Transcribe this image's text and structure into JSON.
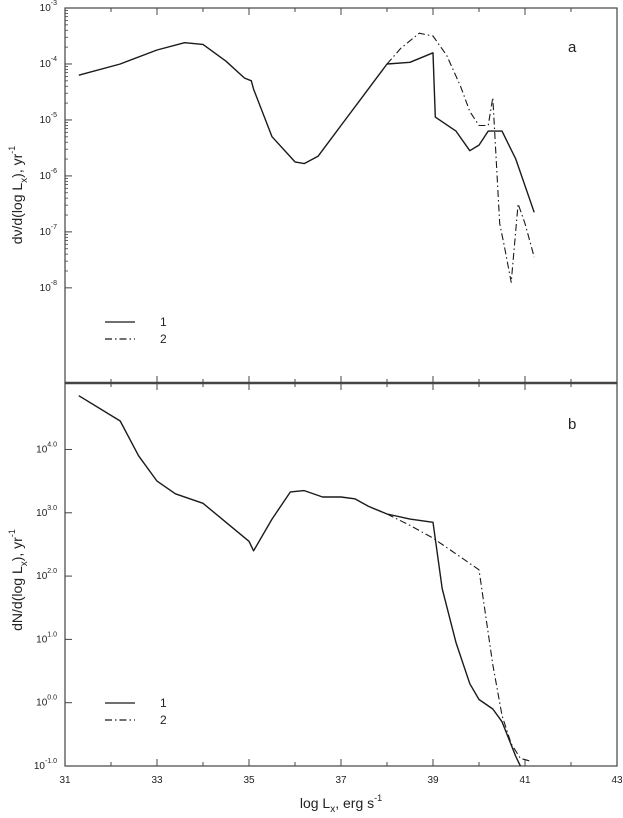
{
  "chart_data": [
    {
      "type": "line",
      "panel_label": "a",
      "ylabel": "dν/d(log L x), yr-1",
      "ylabel_parts": {
        "main": "dν/d(log L",
        "sub": "x",
        "close": "), yr",
        "sup": "-1"
      },
      "x_ticks": [],
      "y_ticks": [
        {
          "base": "10",
          "exp": "-3",
          "value": 0.001
        },
        {
          "base": "10",
          "exp": "-4",
          "value": 0.0001
        },
        {
          "base": "10",
          "exp": "-5",
          "value": 1e-05
        },
        {
          "base": "10",
          "exp": "-6",
          "value": 1e-06
        },
        {
          "base": "10",
          "exp": "-7",
          "value": 1e-07
        },
        {
          "base": "10",
          "exp": "-8",
          "value": 1e-08
        }
      ],
      "xlim": [
        31,
        43
      ],
      "ylim_log10": [
        -9.7,
        -3
      ],
      "y_scale": "log",
      "legend": [
        {
          "label": "1",
          "style": "solid"
        },
        {
          "label": "2",
          "style": "dashdot"
        }
      ],
      "legend_placement": "lower-left",
      "series": [
        {
          "label_ref": "1",
          "style": "solid",
          "x": [
            31.3,
            32.2,
            33.0,
            33.6,
            34.0,
            34.5,
            34.9,
            35.05,
            35.1,
            35.5,
            36.0,
            36.2,
            36.5,
            37.0,
            37.5,
            38.0,
            38.5,
            39.0,
            39.05,
            39.5,
            39.8,
            40.0,
            40.2,
            40.5,
            40.8,
            41.2
          ],
          "y": [
            -4.2,
            -4.0,
            -3.75,
            -3.62,
            -3.65,
            -3.95,
            -4.25,
            -4.3,
            -4.45,
            -5.3,
            -5.75,
            -5.78,
            -5.65,
            -5.1,
            -4.55,
            -4.0,
            -3.97,
            -3.8,
            -4.95,
            -5.2,
            -5.55,
            -5.45,
            -5.2,
            -5.2,
            -5.7,
            -6.65
          ]
        },
        {
          "label_ref": "2",
          "style": "dashdot",
          "x": [
            38.0,
            38.3,
            38.7,
            39.0,
            39.3,
            39.6,
            39.8,
            40.0,
            40.2,
            40.3,
            40.45,
            40.55,
            40.7,
            40.85,
            41.0,
            41.2
          ],
          "y": [
            -4.0,
            -3.72,
            -3.45,
            -3.5,
            -3.85,
            -4.4,
            -4.85,
            -5.1,
            -5.1,
            -4.6,
            -6.85,
            -7.25,
            -7.9,
            -6.5,
            -6.85,
            -7.45
          ]
        }
      ]
    },
    {
      "type": "line",
      "panel_label": "b",
      "xlabel": "log L x, erg s -1",
      "xlabel_parts": {
        "main": "log L",
        "sub": "x",
        "mid": ", erg s",
        "sup": "-1"
      },
      "ylabel": "dN/d(log L x), yr-1",
      "ylabel_parts": {
        "main": "dN/d(log L",
        "sub": "x",
        "close": "), yr",
        "sup": "-1"
      },
      "x_ticks": [
        "31",
        "33",
        "35",
        "37",
        "39",
        "41",
        "43"
      ],
      "y_ticks": [
        {
          "base": "10",
          "exp": "4.0",
          "value": 4.0
        },
        {
          "base": "10",
          "exp": "3.0",
          "value": 3.0
        },
        {
          "base": "10",
          "exp": "2.0",
          "value": 2.0
        },
        {
          "base": "10",
          "exp": "1.0",
          "value": 1.0
        },
        {
          "base": "10",
          "exp": "0.0",
          "value": 0.0
        },
        {
          "base": "10",
          "exp": "-1.0",
          "value": -1.0
        }
      ],
      "xlim": [
        31,
        43
      ],
      "ylim_log10": [
        -1.0,
        5.05
      ],
      "y_scale": "log",
      "legend": [
        {
          "label": "1",
          "style": "solid"
        },
        {
          "label": "2",
          "style": "dashdot"
        }
      ],
      "legend_placement": "lower-left",
      "series": [
        {
          "label_ref": "1",
          "style": "solid",
          "x": [
            31.3,
            32.2,
            32.6,
            33.0,
            33.4,
            34.0,
            34.5,
            35.0,
            35.1,
            35.5,
            35.9,
            36.2,
            36.6,
            37.0,
            37.3,
            37.6,
            38.0,
            38.5,
            39.0,
            39.2,
            39.5,
            39.8,
            40.0,
            40.3,
            40.5,
            40.8,
            40.9
          ],
          "y": [
            4.85,
            4.45,
            3.9,
            3.5,
            3.3,
            3.15,
            2.85,
            2.55,
            2.4,
            2.9,
            3.33,
            3.35,
            3.25,
            3.25,
            3.22,
            3.1,
            2.98,
            2.9,
            2.85,
            1.8,
            0.95,
            0.3,
            0.05,
            -0.1,
            -0.3,
            -0.85,
            -1.0
          ]
        },
        {
          "label_ref": "2",
          "style": "dashdot",
          "x": [
            38.0,
            38.5,
            39.0,
            39.5,
            40.0,
            40.1,
            40.3,
            40.5,
            40.7,
            40.9,
            41.1
          ],
          "y": [
            2.98,
            2.8,
            2.6,
            2.35,
            2.1,
            1.6,
            0.6,
            -0.2,
            -0.65,
            -0.88,
            -0.92
          ]
        }
      ]
    }
  ]
}
